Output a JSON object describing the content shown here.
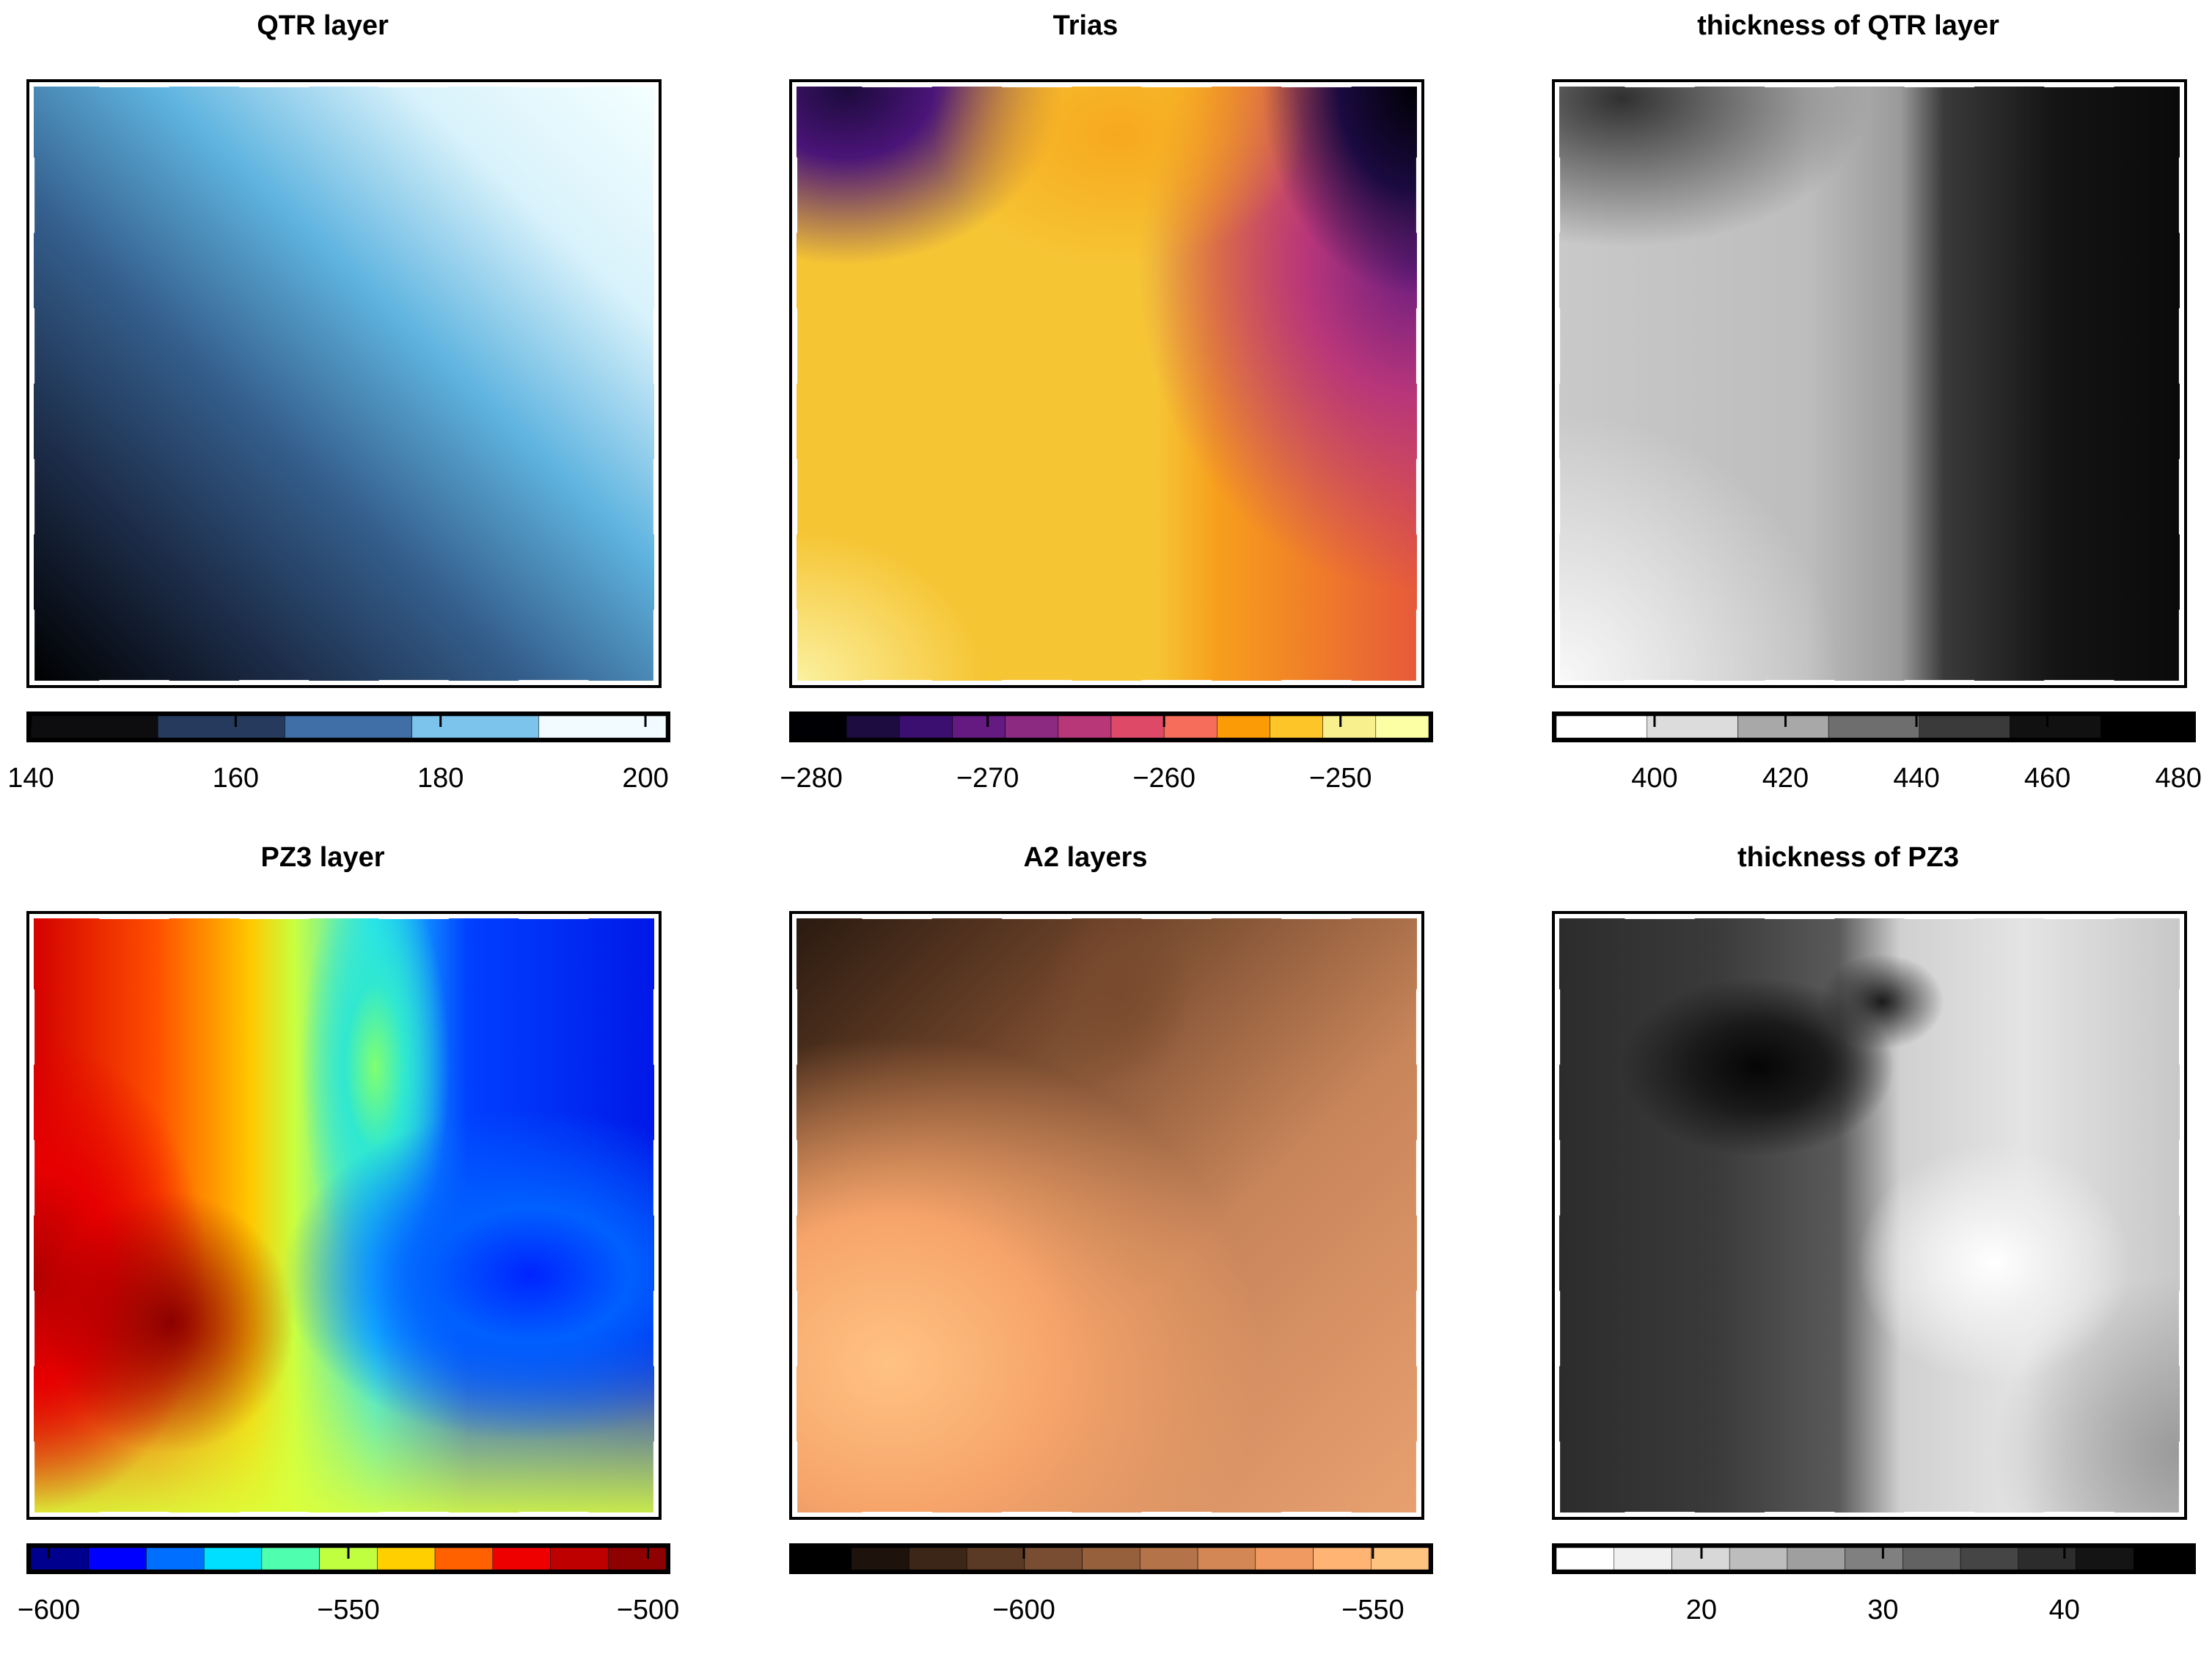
{
  "panels": [
    {
      "title": "QTR layer",
      "heatmap_gradient": {
        "type": "linear-diag",
        "dir": "to top right",
        "stops": [
          "#000000",
          "#1b2a45",
          "#345e8c",
          "#5fb4e0",
          "#d8f2fb",
          "#f4ffff"
        ]
      },
      "colorbar": {
        "min": 140,
        "max": 202,
        "ticks": [
          140,
          160,
          180,
          200
        ],
        "segments": [
          "#0d0d10",
          "#253a5c",
          "#3f6fa6",
          "#7cc4eb",
          "#f2fbff"
        ]
      },
      "tick_labels": [
        "140",
        "160",
        "180",
        "200"
      ]
    },
    {
      "title": "Trias",
      "heatmap_gradient": {
        "type": "trias"
      },
      "colorbar": {
        "min": -281,
        "max": -245,
        "ticks": [
          -280,
          -270,
          -260,
          -250
        ],
        "segments": [
          "#000004",
          "#1d0c3f",
          "#3b0f70",
          "#641a80",
          "#8c2981",
          "#b73779",
          "#de4968",
          "#f66e5b",
          "#fb9b06",
          "#fdc527",
          "#f7f08d",
          "#fcffa4"
        ]
      },
      "tick_labels": [
        "−280",
        "−270",
        "−260",
        "−250"
      ]
    },
    {
      "title": "thickness of QTR layer",
      "heatmap_gradient": {
        "type": "gray-qtr"
      },
      "colorbar": {
        "min": 385,
        "max": 482,
        "ticks": [
          400,
          420,
          440,
          460,
          480
        ],
        "segments": [
          "#ffffff",
          "#dcdcdc",
          "#a8a8a8",
          "#6e6e6e",
          "#3a3a3a",
          "#111111",
          "#000000"
        ]
      },
      "tick_labels": [
        "400",
        "420",
        "440",
        "460",
        "480"
      ]
    },
    {
      "title": "PZ3 layer",
      "heatmap_gradient": {
        "type": "jet"
      },
      "colorbar": {
        "min": -603,
        "max": -497,
        "ticks": [
          -600,
          -550,
          -500
        ],
        "segments": [
          "#00008f",
          "#0000ff",
          "#006fff",
          "#00dfff",
          "#4fffaf",
          "#bfff3f",
          "#ffcf00",
          "#ff6000",
          "#ef0000",
          "#bf0000",
          "#8f0000"
        ]
      },
      "tick_labels": [
        "−600",
        "−550",
        "−500"
      ]
    },
    {
      "title": "A2 layers",
      "heatmap_gradient": {
        "type": "copper"
      },
      "colorbar": {
        "min": -633,
        "max": -542,
        "ticks": [
          -600,
          -550
        ],
        "segments": [
          "#000000",
          "#1e130c",
          "#3c2618",
          "#5a3a24",
          "#784d31",
          "#96603d",
          "#b47349",
          "#d28755",
          "#f09a61",
          "#ffb473",
          "#ffc380"
        ]
      },
      "tick_labels": [
        "−600",
        "−550"
      ]
    },
    {
      "title": "thickness of PZ3",
      "heatmap_gradient": {
        "type": "gray-pz3"
      },
      "colorbar": {
        "min": 12,
        "max": 47,
        "ticks": [
          20,
          30,
          40
        ],
        "segments": [
          "#ffffff",
          "#f0f0f0",
          "#d8d8d8",
          "#bdbdbd",
          "#9f9f9f",
          "#808080",
          "#626262",
          "#454545",
          "#2c2c2c",
          "#141414",
          "#000000"
        ]
      },
      "tick_labels": [
        "20",
        "30",
        "40"
      ]
    }
  ]
}
